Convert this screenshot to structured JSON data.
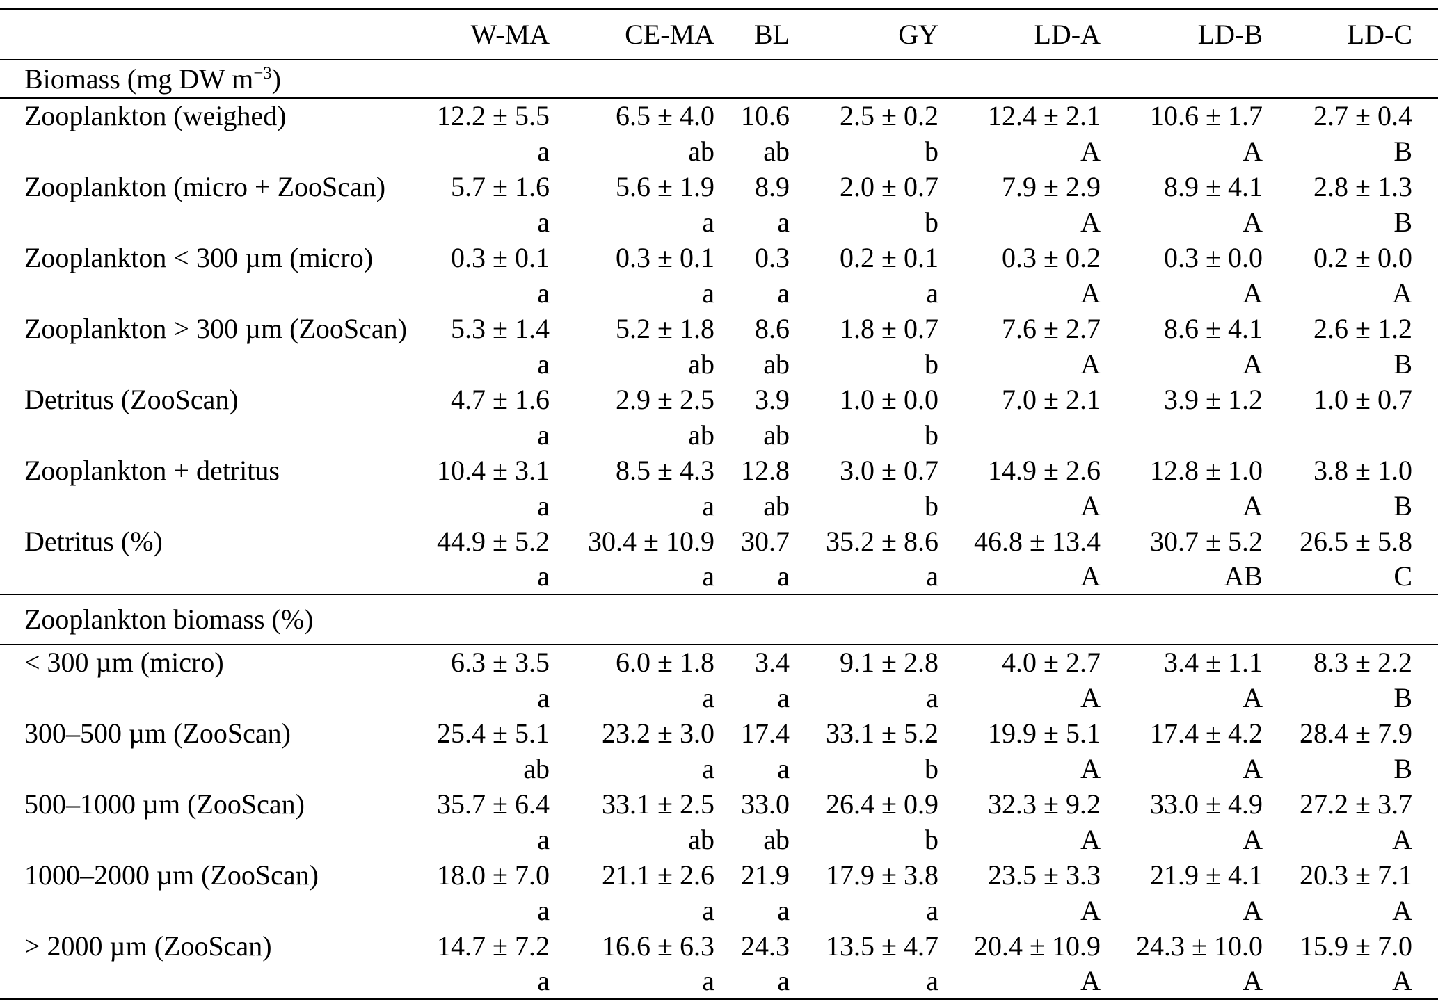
{
  "table": {
    "columns": [
      "",
      "W-MA",
      "CE-MA",
      "BL",
      "GY",
      "LD-A",
      "LD-B",
      "LD-C"
    ],
    "sections": [
      {
        "title": {
          "prefix": "Biomass (mg DW m",
          "sup": "−3",
          "suffix": ")"
        },
        "rows": [
          {
            "label": "Zooplankton (weighed)",
            "values": [
              "12.2 ± 5.5",
              "6.5 ± 4.0",
              "10.6",
              "2.5 ± 0.2",
              "12.4 ± 2.1",
              "10.6 ± 1.7",
              "2.7 ± 0.4"
            ],
            "letters": [
              "a",
              "ab",
              "ab",
              "b",
              "A",
              "A",
              "B"
            ]
          },
          {
            "label": "Zooplankton (micro + ZooScan)",
            "values": [
              "5.7 ± 1.6",
              "5.6 ± 1.9",
              "8.9",
              "2.0 ± 0.7",
              "7.9 ± 2.9",
              "8.9 ± 4.1",
              "2.8 ± 1.3"
            ],
            "letters": [
              "a",
              "a",
              "a",
              "b",
              "A",
              "A",
              "B"
            ]
          },
          {
            "label": "Zooplankton < 300 µm (micro)",
            "values": [
              "0.3 ± 0.1",
              "0.3 ± 0.1",
              "0.3",
              "0.2 ± 0.1",
              "0.3 ± 0.2",
              "0.3 ± 0.0",
              "0.2 ± 0.0"
            ],
            "letters": [
              "a",
              "a",
              "a",
              "a",
              "A",
              "A",
              "A"
            ]
          },
          {
            "label": "Zooplankton > 300 µm (ZooScan)",
            "values": [
              "5.3 ± 1.4",
              "5.2 ± 1.8",
              "8.6",
              "1.8 ± 0.7",
              "7.6 ± 2.7",
              "8.6 ± 4.1",
              "2.6 ± 1.2"
            ],
            "letters": [
              "a",
              "ab",
              "ab",
              "b",
              "A",
              "A",
              "B"
            ]
          },
          {
            "label": "Detritus (ZooScan)",
            "values": [
              "4.7 ± 1.6",
              "2.9 ± 2.5",
              "3.9",
              "1.0 ± 0.0",
              "7.0 ± 2.1",
              "3.9 ± 1.2",
              "1.0 ± 0.7"
            ],
            "letters": [
              "a",
              "ab",
              "ab",
              "b",
              "",
              "",
              ""
            ]
          },
          {
            "label": "Zooplankton + detritus",
            "values": [
              "10.4 ± 3.1",
              "8.5 ± 4.3",
              "12.8",
              "3.0 ± 0.7",
              "14.9 ± 2.6",
              "12.8 ± 1.0",
              "3.8 ± 1.0"
            ],
            "letters": [
              "a",
              "a",
              "ab",
              "b",
              "A",
              "A",
              "B"
            ]
          },
          {
            "label": "Detritus (%)",
            "values": [
              "44.9 ± 5.2",
              "30.4 ± 10.9",
              "30.7",
              "35.2 ± 8.6",
              "46.8 ± 13.4",
              "30.7 ± 5.2",
              "26.5 ± 5.8"
            ],
            "letters": [
              "a",
              "a",
              "a",
              "a",
              "A",
              "AB",
              "C"
            ]
          }
        ]
      },
      {
        "title": {
          "prefix": "Zooplankton biomass (%)",
          "sup": "",
          "suffix": ""
        },
        "rows": [
          {
            "label": "< 300 µm (micro)",
            "values": [
              "6.3 ± 3.5",
              "6.0 ± 1.8",
              "3.4",
              "9.1 ± 2.8",
              "4.0 ± 2.7",
              "3.4 ± 1.1",
              "8.3 ± 2.2"
            ],
            "letters": [
              "a",
              "a",
              "a",
              "a",
              "A",
              "A",
              "B"
            ]
          },
          {
            "label": "300–500 µm (ZooScan)",
            "values": [
              "25.4 ± 5.1",
              "23.2 ± 3.0",
              "17.4",
              "33.1 ± 5.2",
              "19.9 ± 5.1",
              "17.4 ± 4.2",
              "28.4 ± 7.9"
            ],
            "letters": [
              "ab",
              "a",
              "a",
              "b",
              "A",
              "A",
              "B"
            ]
          },
          {
            "label": "500–1000 µm (ZooScan)",
            "values": [
              "35.7 ± 6.4",
              "33.1 ± 2.5",
              "33.0",
              "26.4 ± 0.9",
              "32.3 ± 9.2",
              "33.0 ± 4.9",
              "27.2 ± 3.7"
            ],
            "letters": [
              "a",
              "ab",
              "ab",
              "b",
              "A",
              "A",
              "A"
            ]
          },
          {
            "label": "1000–2000 µm (ZooScan)",
            "values": [
              "18.0 ± 7.0",
              "21.1 ± 2.6",
              "21.9",
              "17.9 ± 3.8",
              "23.5 ± 3.3",
              "21.9 ± 4.1",
              "20.3 ± 7.1"
            ],
            "letters": [
              "a",
              "a",
              "a",
              "a",
              "A",
              "A",
              "A"
            ]
          },
          {
            "label": "> 2000 µm (ZooScan)",
            "values": [
              "14.7 ± 7.2",
              "16.6 ± 6.3",
              "24.3",
              "13.5 ± 4.7",
              "20.4 ± 10.9",
              "24.3 ± 10.0",
              "15.9 ± 7.0"
            ],
            "letters": [
              "a",
              "a",
              "a",
              "a",
              "A",
              "A",
              "A"
            ]
          }
        ]
      }
    ]
  }
}
